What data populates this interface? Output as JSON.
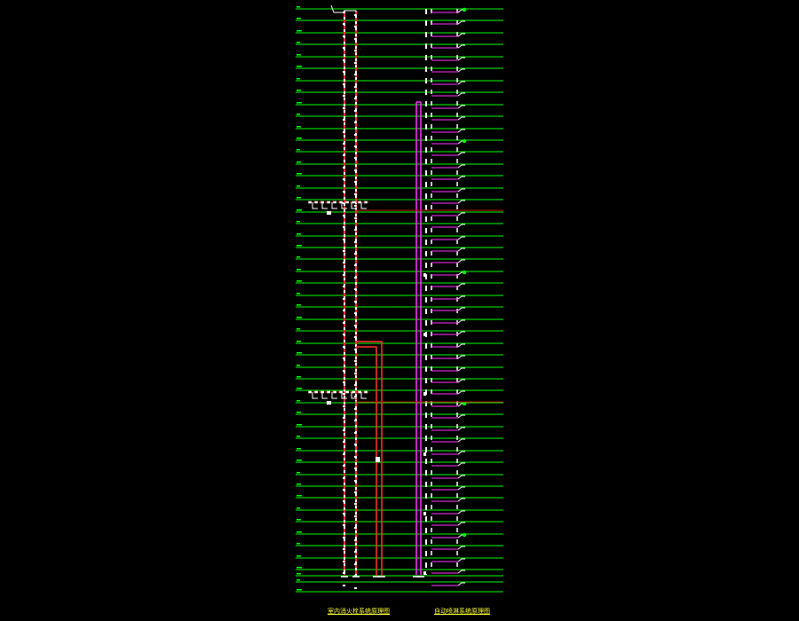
{
  "drawing": {
    "background": "#000000",
    "floor_line_color": "#00ff00",
    "main_riser_color": "#ff3333",
    "branch_riser_color": "#ff33ff",
    "accent_line_color": "#cc0000",
    "riser_fill_color": "#ffffff",
    "floor_count": 49
  },
  "captions": {
    "left": "室内消火栓系统原理图",
    "right": "自动喷淋系统原理图",
    "color": "#ffff33"
  }
}
